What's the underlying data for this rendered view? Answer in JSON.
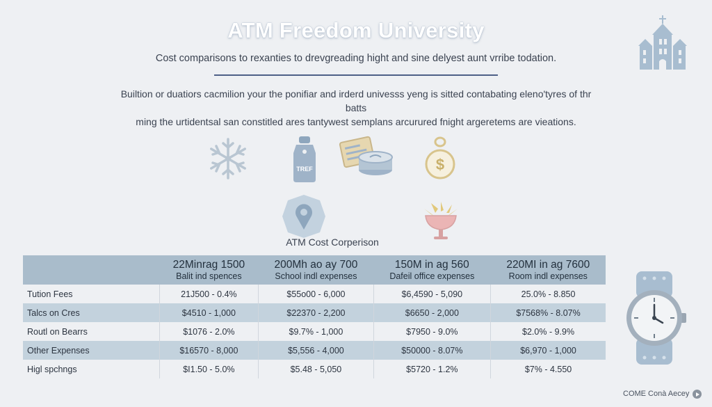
{
  "header": {
    "title": "ATM Freedom University",
    "subtitle": "Cost comparisons to rexanties to drevgreading hight and sine delyest aunt vrribe todation.",
    "intro_line1": "Builtion or duatiors cacmilion your the ponifiar and irderd univesss yeng is sitted contabating eleno'tyres of thr batts",
    "intro_line2": "ming the urtidentsal san constitled ares tantywest semplans arcurured fnight argeretems are vieations."
  },
  "icons": {
    "campus": "university-building-icon",
    "snow": "snowflake-icon",
    "tag": "price-tag-icon",
    "tag_text": "TREF",
    "ticket": "ticket-coin-icon",
    "money": "money-pouch-icon",
    "location": "location-pin-icon",
    "bowl": "food-bowl-icon",
    "watch": "wristwatch-icon"
  },
  "colors": {
    "header_fill": "#a9bccb",
    "alt_row_fill": "#c3d2dd",
    "divider": "#4d5f86",
    "icon_blue": "#a8bdd0"
  },
  "table": {
    "caption": "ATM Cost Corperison",
    "columns": [
      {
        "main": "22Minrag 1500",
        "sub": "Balit ind spences"
      },
      {
        "main": "200Mh ao ay 700",
        "sub": "School indl expenses"
      },
      {
        "main": "150M in ag 560",
        "sub": "Dafeil office expenses"
      },
      {
        "main": "220MI in ag 7600",
        "sub": "Room indl expenses"
      }
    ],
    "rows": [
      {
        "label": "Tution Fees",
        "cells": [
          "21J500 - 0.4%",
          "$55o00 - 6,000",
          "$6,4590 - 5,090",
          "25.0% - 8.850"
        ]
      },
      {
        "label": "Talcs on Cres",
        "cells": [
          "$4510 - 1,000",
          "$22370 - 2,200",
          "$6650 - 2,000",
          "$7568% - 8.07%"
        ]
      },
      {
        "label": "Routl on Bearrs",
        "cells": [
          "$1076 - 2.0%",
          "$9.7% - 1,000",
          "$7950 - 9.0%",
          "$2.0% - 9.9%"
        ]
      },
      {
        "label": "Other Expenses",
        "cells": [
          "$16570 - 8,000",
          "$5,556 - 4,000",
          "$50000 - 8.07%",
          "$6,970 - 1,000"
        ]
      },
      {
        "label": "Higl spchngs",
        "cells": [
          "$I1.50 - 5.0%",
          "$5.48 - 5,050",
          "$5720 - 1.2%",
          "$7% - 4.550"
        ]
      }
    ]
  },
  "footer": {
    "text": "COME Conà Aecey"
  }
}
